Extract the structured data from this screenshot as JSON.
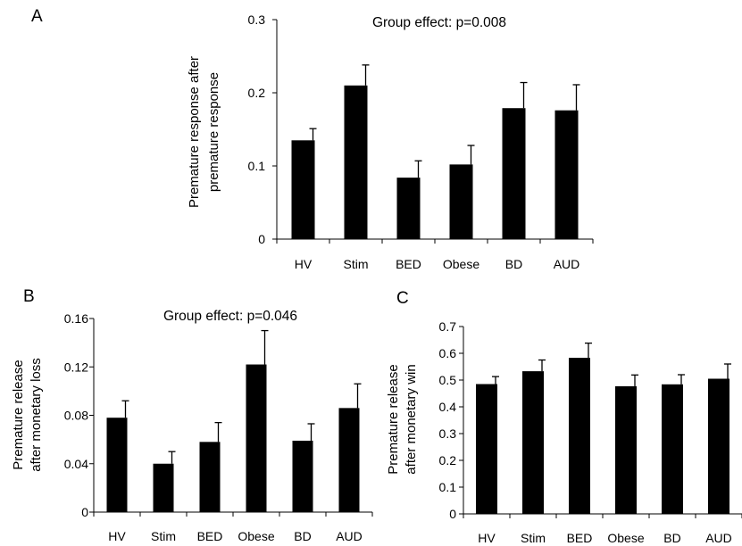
{
  "chart_data": [
    {
      "panel": "A",
      "type": "bar",
      "title": "Group effect: p=0.008",
      "ylabel_lines": [
        "Premature response after",
        "premature response"
      ],
      "categories": [
        "HV",
        "Stim",
        "BED",
        "Obese",
        "BD",
        "AUD"
      ],
      "values": [
        0.135,
        0.21,
        0.084,
        0.102,
        0.179,
        0.176
      ],
      "errors": [
        0.016,
        0.028,
        0.023,
        0.026,
        0.035,
        0.035
      ],
      "ylim": [
        0,
        0.3
      ],
      "yticks": [
        0,
        0.1,
        0.2,
        0.3
      ],
      "ytick_labels": [
        "0",
        "0.1",
        "0.2",
        "0.3"
      ],
      "grid": false,
      "legend": false
    },
    {
      "panel": "B",
      "type": "bar",
      "title": "Group effect: p=0.046",
      "ylabel_lines": [
        "Premature release",
        "after monetary loss"
      ],
      "categories": [
        "HV",
        "Stim",
        "BED",
        "Obese",
        "BD",
        "AUD"
      ],
      "values": [
        0.078,
        0.04,
        0.058,
        0.122,
        0.059,
        0.086
      ],
      "errors": [
        0.014,
        0.01,
        0.016,
        0.028,
        0.014,
        0.02
      ],
      "ylim": [
        0,
        0.16
      ],
      "yticks": [
        0,
        0.04,
        0.08,
        0.12,
        0.16
      ],
      "ytick_labels": [
        "0",
        "0.04",
        "0.08",
        "0.12",
        "0.16"
      ],
      "grid": false,
      "legend": false
    },
    {
      "panel": "C",
      "type": "bar",
      "title": "",
      "ylabel_lines": [
        "Premature release",
        "after monetary win"
      ],
      "categories": [
        "HV",
        "Stim",
        "BED",
        "Obese",
        "BD",
        "AUD"
      ],
      "values": [
        0.485,
        0.533,
        0.583,
        0.477,
        0.484,
        0.505
      ],
      "errors": [
        0.028,
        0.042,
        0.055,
        0.042,
        0.036,
        0.055
      ],
      "ylim": [
        0,
        0.7
      ],
      "yticks": [
        0,
        0.1,
        0.2,
        0.3,
        0.4,
        0.5,
        0.6,
        0.7
      ],
      "ytick_labels": [
        "0",
        "0.1",
        "0.2",
        "0.3",
        "0.4",
        "0.5",
        "0.6",
        "0.7"
      ],
      "grid": false,
      "legend": false
    }
  ]
}
